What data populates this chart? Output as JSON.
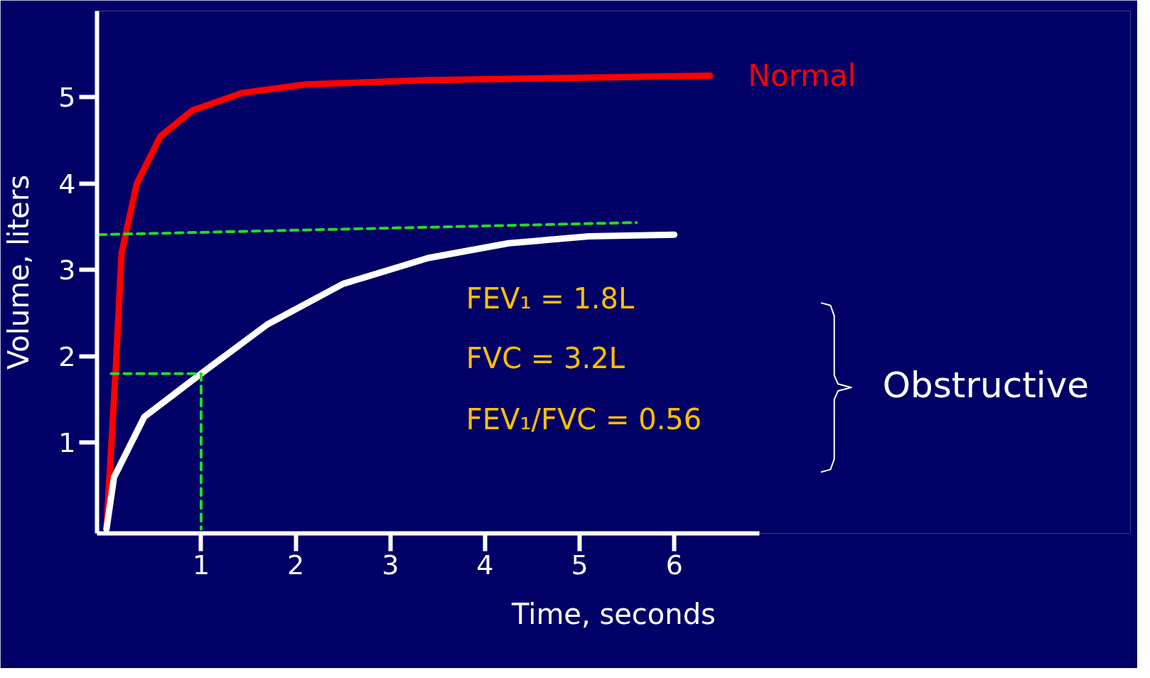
{
  "chart_data": {
    "type": "line",
    "xlabel": "Time, seconds",
    "ylabel": "Volume, liters",
    "xlim": [
      -0.1,
      6.9
    ],
    "ylim": [
      -0.05,
      6
    ],
    "xticks": [
      1,
      2,
      3,
      4,
      5,
      6
    ],
    "yticks": [
      1,
      2,
      3,
      4,
      5
    ],
    "grid": false,
    "series": [
      {
        "name": "Normal",
        "color": "#ff0000",
        "x": [
          0,
          0.1,
          0.16,
          0.32,
          0.57,
          0.91,
          1.43,
          2.11,
          3.4,
          6.38
        ],
        "values": [
          0,
          1.9,
          3.2,
          4.0,
          4.55,
          4.85,
          5.05,
          5.15,
          5.2,
          5.25
        ]
      },
      {
        "color": "#ffffff",
        "x": [
          0,
          0.08,
          0.4,
          1,
          1.7,
          2.5,
          3.4,
          4.25,
          5.1,
          6
        ],
        "values": [
          0,
          0.6,
          1.3,
          1.8,
          2.37,
          2.84,
          3.14,
          3.31,
          3.39,
          3.41
        ]
      },
      {
        "color": "#22dd22",
        "line_style": "dashed",
        "x": [
          -0.08,
          5.6
        ],
        "values": [
          3.41,
          3.55
        ]
      },
      {
        "color": "#22dd22",
        "line_style": "dashed",
        "x": [
          0.05,
          1,
          1
        ],
        "values": [
          1.8,
          1.8,
          0
        ]
      }
    ],
    "annotations": [
      "FEV₁ = 1.8L",
      "FVC = 3.2L",
      "FEV₁/FVC = 0.56",
      "Obstructive"
    ]
  }
}
